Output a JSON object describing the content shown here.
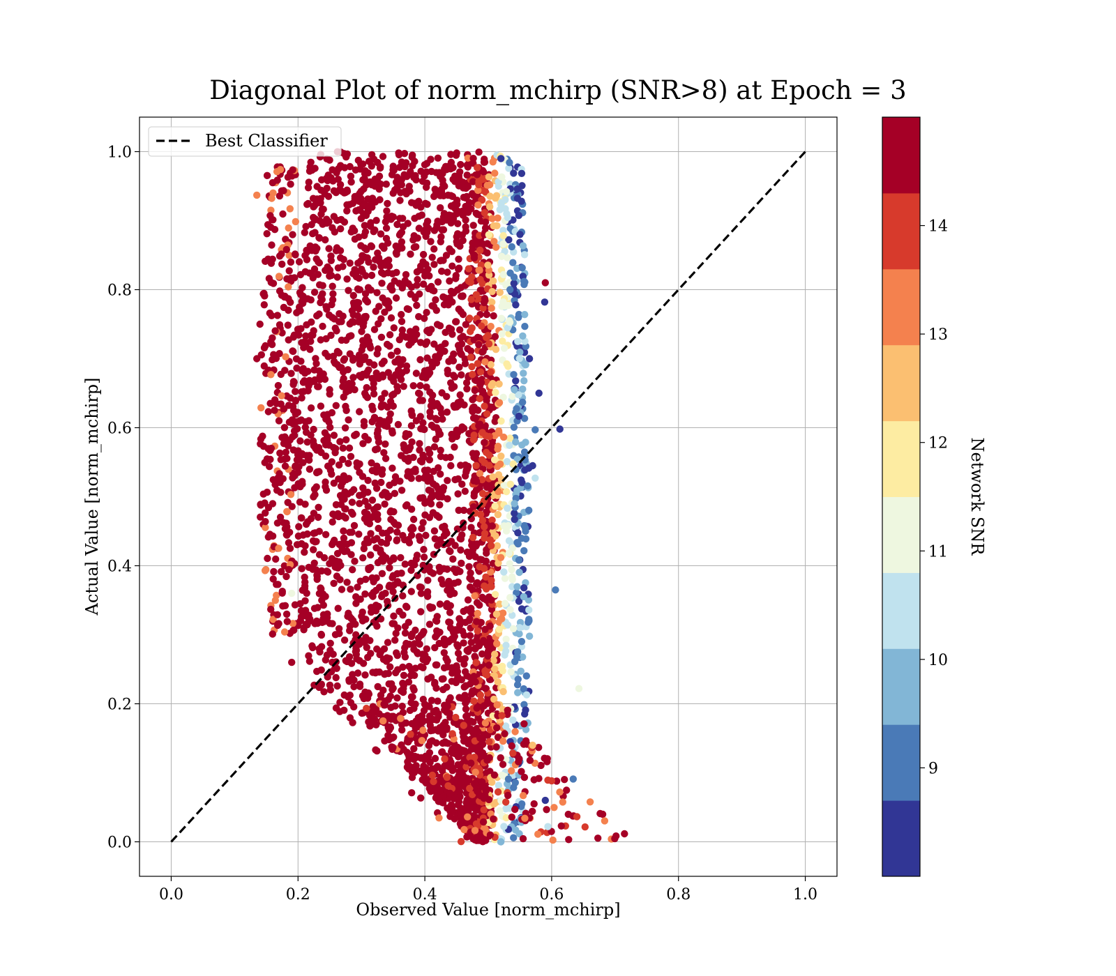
{
  "chart_data": {
    "type": "scatter",
    "title": "Diagonal Plot of norm_mchirp (SNR>8) at Epoch = 3",
    "xlabel": "Observed Value [norm_mchirp]",
    "ylabel": "Actual Value [norm_mchirp]",
    "xlim": [
      -0.05,
      1.05
    ],
    "ylim": [
      -0.05,
      1.05
    ],
    "xticks": [
      0.0,
      0.2,
      0.4,
      0.6,
      0.8,
      1.0
    ],
    "yticks": [
      0.0,
      0.2,
      0.4,
      0.6,
      0.8,
      1.0
    ],
    "x_tick_labels": [
      "0.0",
      "0.2",
      "0.4",
      "0.6",
      "0.8",
      "1.0"
    ],
    "y_tick_labels": [
      "0.0",
      "0.2",
      "0.4",
      "0.6",
      "0.8",
      "1.0"
    ],
    "grid": true,
    "legend": {
      "position": "upper-left",
      "entries": [
        "Best Classifier"
      ]
    },
    "reference_line": {
      "name": "Best Classifier",
      "style": "dashed",
      "color": "#000000",
      "points": [
        [
          0,
          0
        ],
        [
          1,
          1
        ]
      ]
    },
    "colorbar": {
      "label": "Network SNR",
      "min": 8,
      "max": 15,
      "ticks": [
        9,
        10,
        11,
        12,
        13,
        14
      ],
      "tick_labels": [
        "9",
        "10",
        "11",
        "12",
        "13",
        "14"
      ],
      "colors": [
        "#313695",
        "#4a7ab7",
        "#82b6d6",
        "#c0e2ee",
        "#eef7e0",
        "#fdeca2",
        "#fbbf71",
        "#f4814e",
        "#d73a2c",
        "#a50026"
      ]
    },
    "point_cloud": {
      "description_note": "dense scatter; main body dark red (SNR>14), edges toward right side show lower SNR",
      "sample_points": [
        {
          "x": 0.135,
          "y": 0.937,
          "snr": 13.2
        },
        {
          "x": 0.16,
          "y": 0.955,
          "snr": 14.8
        },
        {
          "x": 0.135,
          "y": 0.7,
          "snr": 14.8
        },
        {
          "x": 0.14,
          "y": 0.75,
          "snr": 14.8
        },
        {
          "x": 0.17,
          "y": 0.61,
          "snr": 14.8
        },
        {
          "x": 0.16,
          "y": 0.49,
          "snr": 14.8
        },
        {
          "x": 0.19,
          "y": 0.36,
          "snr": 11.0
        },
        {
          "x": 0.19,
          "y": 0.26,
          "snr": 14.8
        },
        {
          "x": 0.52,
          "y": 0.99,
          "snr": 8.5
        },
        {
          "x": 0.55,
          "y": 0.88,
          "snr": 8.6
        },
        {
          "x": 0.59,
          "y": 0.81,
          "snr": 14.8
        },
        {
          "x": 0.589,
          "y": 0.782,
          "snr": 8.7
        },
        {
          "x": 0.565,
          "y": 0.7,
          "snr": 8.5
        },
        {
          "x": 0.58,
          "y": 0.65,
          "snr": 8.5
        },
        {
          "x": 0.613,
          "y": 0.598,
          "snr": 8.5
        },
        {
          "x": 0.574,
          "y": 0.597,
          "snr": 9.2
        },
        {
          "x": 0.57,
          "y": 0.545,
          "snr": 8.5
        },
        {
          "x": 0.574,
          "y": 0.527,
          "snr": 10.5
        },
        {
          "x": 0.606,
          "y": 0.365,
          "snr": 9.3
        },
        {
          "x": 0.643,
          "y": 0.222,
          "snr": 11.2
        },
        {
          "x": 0.634,
          "y": 0.091,
          "snr": 9.3
        },
        {
          "x": 0.594,
          "y": 0.022,
          "snr": 10.5
        },
        {
          "x": 0.52,
          "y": 0.0,
          "snr": 10.0
        },
        {
          "x": 0.59,
          "y": 0.06,
          "snr": 8.5
        },
        {
          "x": 0.57,
          "y": 0.14,
          "snr": 12.6
        }
      ]
    }
  }
}
